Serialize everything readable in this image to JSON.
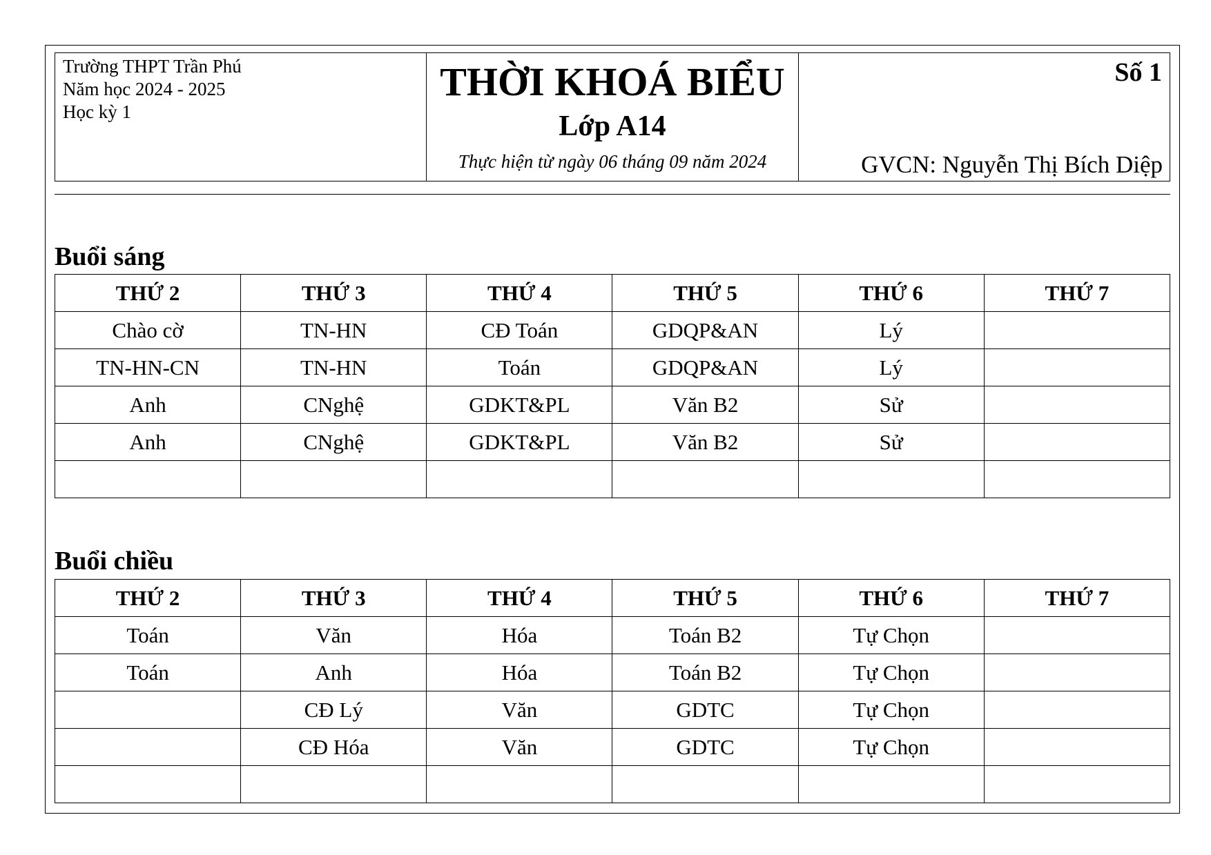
{
  "header": {
    "school": "Trường THPT Trần Phú",
    "year": "Năm học 2024 - 2025",
    "term": "Học kỳ 1",
    "title": "THỜI KHOÁ BIỂU",
    "class": "Lớp A14",
    "effective": "Thực hiện từ ngày 06 tháng 09 năm 2024",
    "number": "Số 1",
    "teacher": "GVCN: Nguyễn Thị Bích Diệp"
  },
  "days": [
    "THỨ 2",
    "THỨ 3",
    "THỨ 4",
    "THỨ 5",
    "THỨ 6",
    "THỨ 7"
  ],
  "morning": {
    "label": "Buổi sáng",
    "rows": [
      [
        "Chào cờ",
        "TN-HN",
        "CĐ Toán",
        "GDQP&AN",
        "Lý",
        ""
      ],
      [
        "TN-HN-CN",
        "TN-HN",
        "Toán",
        "GDQP&AN",
        "Lý",
        ""
      ],
      [
        "Anh",
        "CNghệ",
        "GDKT&PL",
        "Văn B2",
        "Sử",
        ""
      ],
      [
        "Anh",
        "CNghệ",
        "GDKT&PL",
        "Văn B2",
        "Sử",
        ""
      ],
      [
        "",
        "",
        "",
        "",
        "",
        ""
      ]
    ]
  },
  "afternoon": {
    "label": "Buổi chiều",
    "rows": [
      [
        "Toán",
        "Văn",
        "Hóa",
        "Toán B2",
        "Tự Chọn",
        ""
      ],
      [
        "Toán",
        "Anh",
        "Hóa",
        "Toán B2",
        "Tự Chọn",
        ""
      ],
      [
        "",
        "CĐ Lý",
        "Văn",
        "GDTC",
        "Tự Chọn",
        ""
      ],
      [
        "",
        "CĐ Hóa",
        "Văn",
        "GDTC",
        "Tự Chọn",
        ""
      ],
      [
        "",
        "",
        "",
        "",
        "",
        ""
      ]
    ]
  }
}
